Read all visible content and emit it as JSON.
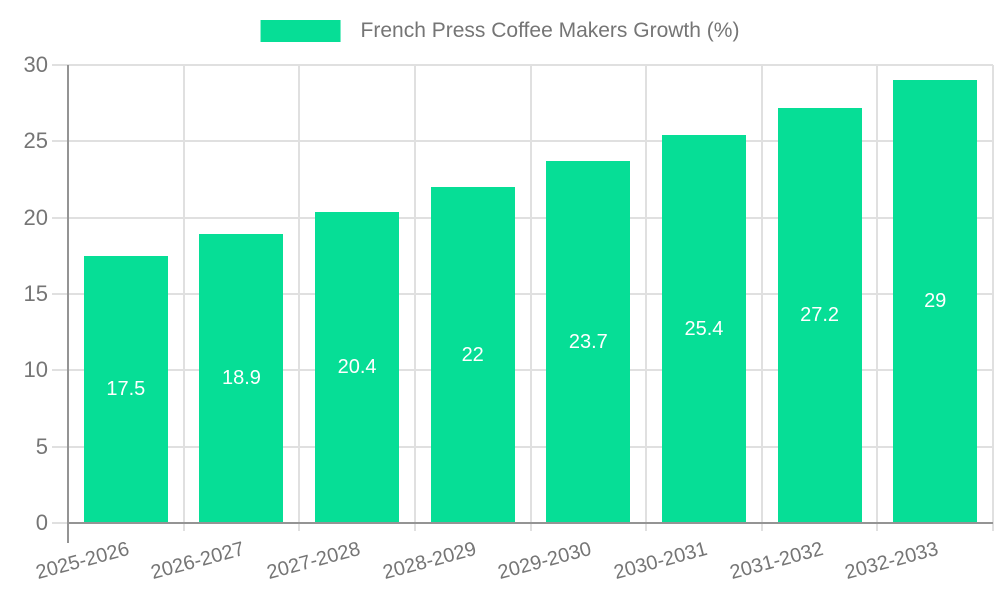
{
  "legend": {
    "label": "French Press Coffee Makers Growth (%)",
    "swatch_color": "#06DE96"
  },
  "chart_data": {
    "type": "bar",
    "title": "French Press Coffee Makers Growth (%)",
    "categories": [
      "2025-2026",
      "2026-2027",
      "2027-2028",
      "2028-2029",
      "2029-2030",
      "2030-2031",
      "2031-2032",
      "2032-2033"
    ],
    "series": [
      {
        "name": "French Press Coffee Makers Growth (%)",
        "values": [
          17.5,
          18.9,
          20.4,
          22,
          23.7,
          25.4,
          27.2,
          29
        ]
      }
    ],
    "value_labels": [
      "17.5",
      "18.9",
      "20.4",
      "22",
      "23.7",
      "25.4",
      "27.2",
      "29"
    ],
    "xlabel": "",
    "ylabel": "",
    "ylim": [
      0,
      30
    ],
    "yticks": [
      0,
      5,
      10,
      15,
      20,
      25,
      30
    ],
    "grid": true,
    "legend_position": "top-center",
    "colors": {
      "bar": "#06DE96",
      "gridline": "#e0e0e0",
      "axis_line": "#949494",
      "tick_text": "#757575",
      "value_label_text": "#ffffff",
      "background": "#ffffff"
    }
  }
}
